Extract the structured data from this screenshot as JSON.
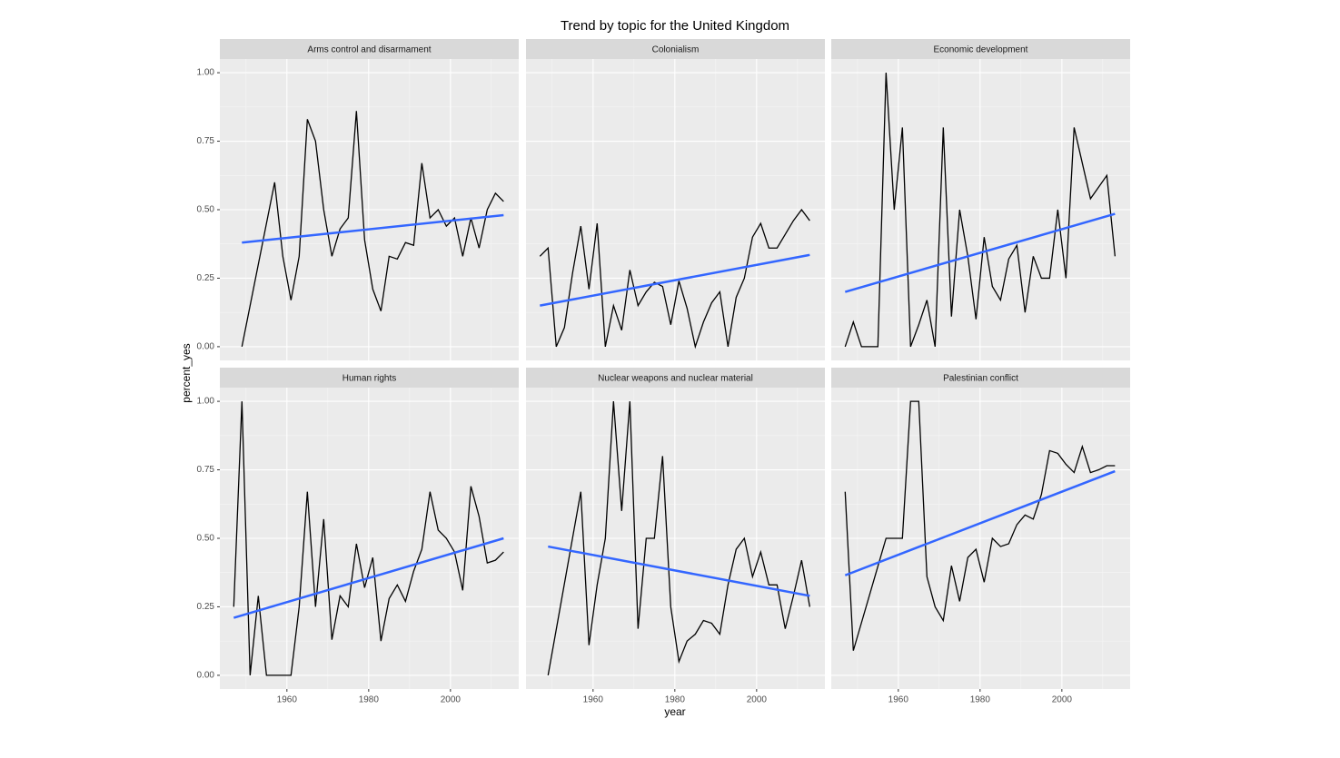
{
  "title": "Trend by topic for the United Kingdom",
  "x_label": "year",
  "y_label": "percent_yes",
  "chart_data": [
    {
      "type": "line",
      "title": "Arms control and disarmament",
      "color": "#000000",
      "x": [
        1949,
        1957,
        1959,
        1961,
        1963,
        1965,
        1967,
        1969,
        1971,
        1973,
        1975,
        1977,
        1979,
        1981,
        1983,
        1985,
        1987,
        1989,
        1991,
        1993,
        1995,
        1997,
        1999,
        2001,
        2003,
        2005,
        2007,
        2009,
        2011,
        2013
      ],
      "values": [
        0,
        0.6,
        0.33,
        0.17,
        0.33,
        0.83,
        0.75,
        0.5,
        0.33,
        0.43,
        0.47,
        0.86,
        0.39,
        0.21,
        0.13,
        0.33,
        0.32,
        0.38,
        0.37,
        0.67,
        0.47,
        0.5,
        0.44,
        0.47,
        0.33,
        0.47,
        0.36,
        0.5,
        0.56,
        0.53
      ],
      "trend": {
        "x": [
          1949,
          2013
        ],
        "values": [
          0.38,
          0.48
        ],
        "color": "#3366ff"
      },
      "xlim": [
        1943.6,
        2016.7
      ],
      "ylim": [
        -0.05,
        1.05
      ],
      "xticks": [
        1960,
        1980,
        2000
      ],
      "yticks": [
        {
          "value": 0,
          "label": "0.00"
        },
        {
          "value": 0.25,
          "label": "0.25"
        },
        {
          "value": 0.5,
          "label": "0.50"
        },
        {
          "value": 0.75,
          "label": "0.75"
        },
        {
          "value": 1,
          "label": "1.00"
        }
      ],
      "grid": true
    },
    {
      "type": "line",
      "title": "Colonialism",
      "color": "#000000",
      "x": [
        1947,
        1949,
        1951,
        1953,
        1955,
        1957,
        1959,
        1961,
        1963,
        1965,
        1967,
        1969,
        1971,
        1973,
        1975,
        1977,
        1979,
        1981,
        1983,
        1985,
        1987,
        1989,
        1991,
        1993,
        1995,
        1997,
        1999,
        2001,
        2003,
        2005,
        2007,
        2009,
        2011,
        2013
      ],
      "values": [
        0.33,
        0.36,
        0,
        0.07,
        0.27,
        0.44,
        0.21,
        0.45,
        0,
        0.15,
        0.06,
        0.28,
        0.15,
        0.2,
        0.235,
        0.22,
        0.08,
        0.24,
        0.14,
        0,
        0.09,
        0.16,
        0.2,
        0,
        0.18,
        0.25,
        0.4,
        0.45,
        0.36,
        0.36,
        0.41,
        0.46,
        0.5,
        0.46
      ],
      "trend": {
        "x": [
          1947,
          2013
        ],
        "values": [
          0.15,
          0.335
        ],
        "color": "#3366ff"
      },
      "xlim": [
        1943.6,
        2016.7
      ],
      "ylim": [
        -0.05,
        1.05
      ],
      "xticks": [
        1960,
        1980,
        2000
      ],
      "yticks": [
        {
          "value": 0,
          "label": "0.00"
        },
        {
          "value": 0.25,
          "label": "0.25"
        },
        {
          "value": 0.5,
          "label": "0.50"
        },
        {
          "value": 0.75,
          "label": "0.75"
        },
        {
          "value": 1,
          "label": "1.00"
        }
      ],
      "grid": true
    },
    {
      "type": "line",
      "title": "Economic development",
      "color": "#000000",
      "x": [
        1947,
        1949,
        1951,
        1953,
        1955,
        1957,
        1959,
        1961,
        1963,
        1965,
        1967,
        1969,
        1971,
        1973,
        1975,
        1977,
        1979,
        1981,
        1983,
        1985,
        1987,
        1989,
        1991,
        1993,
        1995,
        1997,
        1999,
        2001,
        2003,
        2007,
        2011,
        2013
      ],
      "values": [
        0,
        0.09,
        0,
        0,
        0,
        1,
        0.5,
        0.8,
        0,
        0.08,
        0.17,
        0,
        0.8,
        0.11,
        0.5,
        0.33,
        0.1,
        0.4,
        0.22,
        0.17,
        0.32,
        0.37,
        0.125,
        0.33,
        0.25,
        0.25,
        0.5,
        0.25,
        0.8,
        0.54,
        0.625,
        0.33
      ],
      "trend": {
        "x": [
          1947,
          2013
        ],
        "values": [
          0.2,
          0.485
        ],
        "color": "#3366ff"
      },
      "xlim": [
        1943.6,
        2016.7
      ],
      "ylim": [
        -0.05,
        1.05
      ],
      "xticks": [
        1960,
        1980,
        2000
      ],
      "yticks": [
        {
          "value": 0,
          "label": "0.00"
        },
        {
          "value": 0.25,
          "label": "0.25"
        },
        {
          "value": 0.5,
          "label": "0.50"
        },
        {
          "value": 0.75,
          "label": "0.75"
        },
        {
          "value": 1,
          "label": "1.00"
        }
      ],
      "grid": true
    },
    {
      "type": "line",
      "title": "Human rights",
      "color": "#000000",
      "x": [
        1947,
        1949,
        1951,
        1953,
        1955,
        1957,
        1959,
        1961,
        1963,
        1965,
        1967,
        1969,
        1971,
        1973,
        1975,
        1977,
        1979,
        1981,
        1983,
        1985,
        1987,
        1989,
        1991,
        1993,
        1995,
        1997,
        1999,
        2001,
        2003,
        2005,
        2007,
        2009,
        2011,
        2013
      ],
      "values": [
        0.25,
        1,
        0,
        0.29,
        0,
        0,
        0,
        0,
        0.25,
        0.67,
        0.25,
        0.57,
        0.13,
        0.29,
        0.25,
        0.48,
        0.32,
        0.43,
        0.125,
        0.28,
        0.33,
        0.27,
        0.38,
        0.46,
        0.67,
        0.53,
        0.5,
        0.45,
        0.31,
        0.69,
        0.58,
        0.41,
        0.42,
        0.45
      ],
      "trend": {
        "x": [
          1947,
          2013
        ],
        "values": [
          0.21,
          0.5
        ],
        "color": "#3366ff"
      },
      "xlim": [
        1943.6,
        2016.7
      ],
      "ylim": [
        -0.05,
        1.05
      ],
      "xticks": [
        1960,
        1980,
        2000
      ],
      "yticks": [
        {
          "value": 0,
          "label": "0.00"
        },
        {
          "value": 0.25,
          "label": "0.25"
        },
        {
          "value": 0.5,
          "label": "0.50"
        },
        {
          "value": 0.75,
          "label": "0.75"
        },
        {
          "value": 1,
          "label": "1.00"
        }
      ],
      "grid": true
    },
    {
      "type": "line",
      "title": "Nuclear weapons and nuclear material",
      "color": "#000000",
      "x": [
        1949,
        1957,
        1959,
        1961,
        1963,
        1965,
        1967,
        1969,
        1971,
        1973,
        1975,
        1977,
        1979,
        1981,
        1983,
        1985,
        1987,
        1989,
        1991,
        1993,
        1995,
        1997,
        1999,
        2001,
        2003,
        2005,
        2007,
        2009,
        2011,
        2013
      ],
      "values": [
        0,
        0.67,
        0.11,
        0.33,
        0.5,
        1,
        0.6,
        1,
        0.17,
        0.5,
        0.5,
        0.8,
        0.25,
        0.05,
        0.125,
        0.15,
        0.2,
        0.19,
        0.15,
        0.33,
        0.46,
        0.5,
        0.36,
        0.45,
        0.33,
        0.33,
        0.17,
        0.29,
        0.42,
        0.25
      ],
      "trend": {
        "x": [
          1949,
          2013
        ],
        "values": [
          0.47,
          0.29
        ],
        "color": "#3366ff"
      },
      "xlim": [
        1943.6,
        2016.7
      ],
      "ylim": [
        -0.05,
        1.05
      ],
      "xticks": [
        1960,
        1980,
        2000
      ],
      "yticks": [
        {
          "value": 0,
          "label": "0.00"
        },
        {
          "value": 0.25,
          "label": "0.25"
        },
        {
          "value": 0.5,
          "label": "0.50"
        },
        {
          "value": 0.75,
          "label": "0.75"
        },
        {
          "value": 1,
          "label": "1.00"
        }
      ],
      "grid": true
    },
    {
      "type": "line",
      "title": "Palestinian conflict",
      "color": "#000000",
      "x": [
        1947,
        1949,
        1957,
        1959,
        1961,
        1963,
        1965,
        1967,
        1969,
        1971,
        1973,
        1975,
        1977,
        1979,
        1981,
        1983,
        1985,
        1987,
        1989,
        1991,
        1993,
        1995,
        1997,
        1999,
        2001,
        2003,
        2005,
        2007,
        2009,
        2011,
        2013
      ],
      "values": [
        0.67,
        0.09,
        0.5,
        0.5,
        0.5,
        1,
        1,
        0.36,
        0.25,
        0.2,
        0.4,
        0.27,
        0.43,
        0.46,
        0.34,
        0.5,
        0.47,
        0.48,
        0.55,
        0.585,
        0.57,
        0.66,
        0.82,
        0.81,
        0.77,
        0.74,
        0.835,
        0.74,
        0.75,
        0.765,
        0.765
      ],
      "trend": {
        "x": [
          1947,
          2013
        ],
        "values": [
          0.365,
          0.745
        ],
        "color": "#3366ff"
      },
      "xlim": [
        1943.6,
        2016.7
      ],
      "ylim": [
        -0.05,
        1.05
      ],
      "xticks": [
        1960,
        1980,
        2000
      ],
      "yticks": [
        {
          "value": 0,
          "label": "0.00"
        },
        {
          "value": 0.25,
          "label": "0.25"
        },
        {
          "value": 0.5,
          "label": "0.50"
        },
        {
          "value": 0.75,
          "label": "0.75"
        },
        {
          "value": 1,
          "label": "1.00"
        }
      ],
      "grid": true
    }
  ]
}
